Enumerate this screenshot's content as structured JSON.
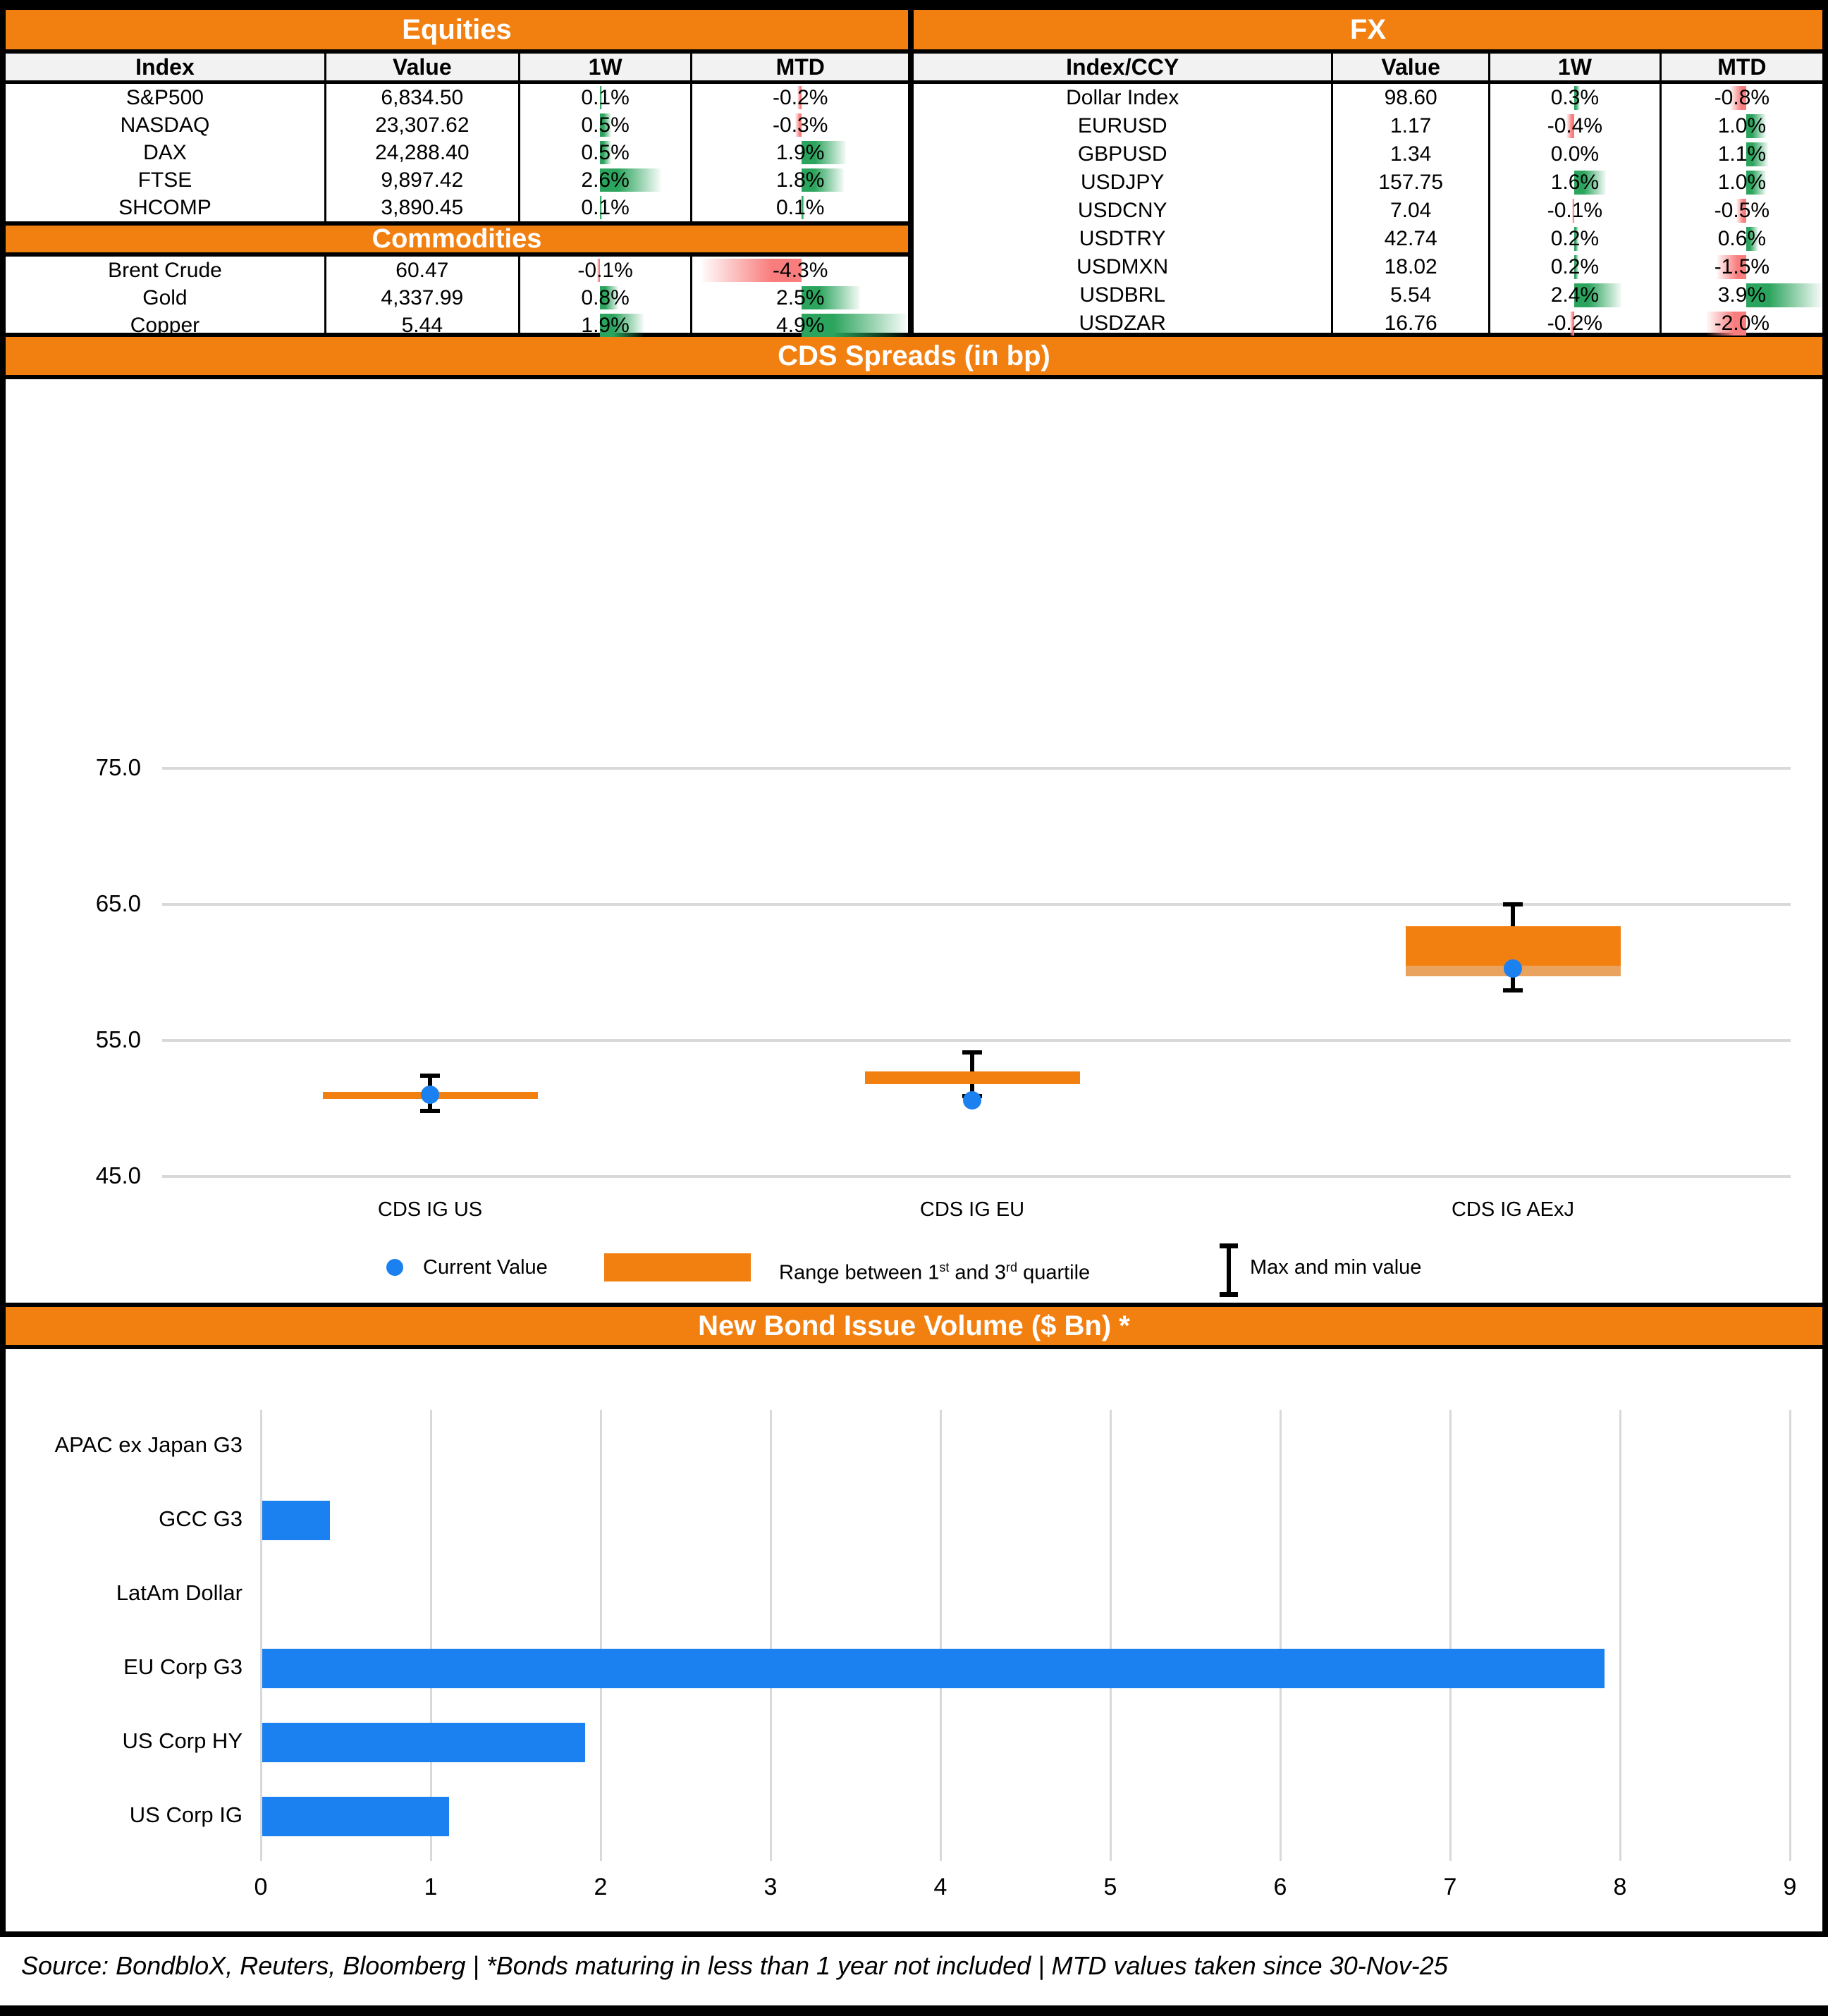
{
  "colors": {
    "orange": "#F28011",
    "orange_light": "#E9A35F",
    "blue": "#1B80F0",
    "green": "#2BA45D",
    "red": "#F97D7D",
    "header_gray": "#F2F2F2",
    "gridline": "#D9D9D9"
  },
  "tables": {
    "left": {
      "equities": {
        "title": "Equities",
        "headers": [
          "Index",
          "Value",
          "1W",
          "MTD"
        ],
        "rows": [
          {
            "label": "S&P500",
            "value": "6,834.50",
            "w1": "0.1%",
            "mtd": "-0.2%"
          },
          {
            "label": "NASDAQ",
            "value": "23,307.62",
            "w1": "0.5%",
            "mtd": "-0.3%"
          },
          {
            "label": "DAX",
            "value": "24,288.40",
            "w1": "0.5%",
            "mtd": "1.9%"
          },
          {
            "label": "FTSE",
            "value": "9,897.42",
            "w1": "2.6%",
            "mtd": "1.8%"
          },
          {
            "label": "SHCOMP",
            "value": "3,890.45",
            "w1": "0.1%",
            "mtd": "0.1%"
          }
        ]
      },
      "commodities": {
        "title": "Commodities",
        "rows": [
          {
            "label": "Brent Crude",
            "value": "60.47",
            "w1": "-0.1%",
            "mtd": "-4.3%"
          },
          {
            "label": "Gold",
            "value": "4,337.99",
            "w1": "0.8%",
            "mtd": "2.5%"
          },
          {
            "label": "Copper",
            "value": "5.44",
            "w1": "1.9%",
            "mtd": "4.9%"
          }
        ]
      }
    },
    "right": {
      "fx": {
        "title": "FX",
        "headers": [
          "Index/CCY",
          "Value",
          "1W",
          "MTD"
        ],
        "rows": [
          {
            "label": "Dollar Index",
            "value": "98.60",
            "w1": "0.3%",
            "mtd": "-0.8%"
          },
          {
            "label": "EURUSD",
            "value": "1.17",
            "w1": "-0.4%",
            "mtd": "1.0%"
          },
          {
            "label": "GBPUSD",
            "value": "1.34",
            "w1": "0.0%",
            "mtd": "1.1%"
          },
          {
            "label": "USDJPY",
            "value": "157.75",
            "w1": "1.6%",
            "mtd": "1.0%"
          },
          {
            "label": "USDCNY",
            "value": "7.04",
            "w1": "-0.1%",
            "mtd": "-0.5%"
          },
          {
            "label": "USDTRY",
            "value": "42.74",
            "w1": "0.2%",
            "mtd": "0.6%"
          },
          {
            "label": "USDMXN",
            "value": "18.02",
            "w1": "0.2%",
            "mtd": "-1.5%"
          },
          {
            "label": "USDBRL",
            "value": "5.54",
            "w1": "2.4%",
            "mtd": "3.9%"
          },
          {
            "label": "USDZAR",
            "value": "16.76",
            "w1": "-0.2%",
            "mtd": "-2.0%"
          }
        ]
      }
    }
  },
  "chart_data": [
    {
      "type": "boxplot",
      "title": "CDS Spreads (in bp)",
      "categories": [
        "CDS IG US",
        "CDS IG EU",
        "CDS IG AExJ"
      ],
      "series": [
        {
          "name": "CDS IG US",
          "min": 49.8,
          "q1": 50.7,
          "q3": 51.2,
          "max": 52.4,
          "current": 51.0
        },
        {
          "name": "CDS IG EU",
          "min": 50.9,
          "q1": 51.8,
          "q3": 52.7,
          "max": 54.1,
          "current": 50.6
        },
        {
          "name": "CDS IG AExJ",
          "min": 58.7,
          "q1": 59.7,
          "q3": 63.4,
          "max": 65.0,
          "current": 60.3,
          "median": 60.5
        }
      ],
      "ylim": [
        45,
        75
      ],
      "gridlines": [
        75,
        65,
        55,
        45
      ],
      "grid": true,
      "legend_position": "bottom",
      "legend": [
        {
          "icon": "dot",
          "label": "Current Value"
        },
        {
          "icon": "box",
          "label_parts": [
            "Range between 1",
            "st",
            " and 3",
            "rd",
            " quartile"
          ]
        },
        {
          "icon": "whisker",
          "label": "Max and min value"
        }
      ]
    },
    {
      "type": "bar",
      "orientation": "horizontal",
      "title": "New Bond Issue Volume ($ Bn) *",
      "categories": [
        "APAC ex Japan G3",
        "GCC G3",
        "LatAm Dollar",
        "EU Corp G3",
        "US Corp HY",
        "US Corp IG"
      ],
      "values": [
        0,
        0.4,
        0,
        7.9,
        1.9,
        1.1
      ],
      "xlim": [
        0,
        9
      ],
      "xticks": [
        0,
        1,
        2,
        3,
        4,
        5,
        6,
        7,
        8,
        9
      ],
      "xlabel": "",
      "ylabel": "",
      "grid": true
    }
  ],
  "footer": {
    "text": "Source: BondbloX, Reuters, Bloomberg | *Bonds maturing in less than 1 year not included | MTD values taken since 30-Nov-25"
  }
}
